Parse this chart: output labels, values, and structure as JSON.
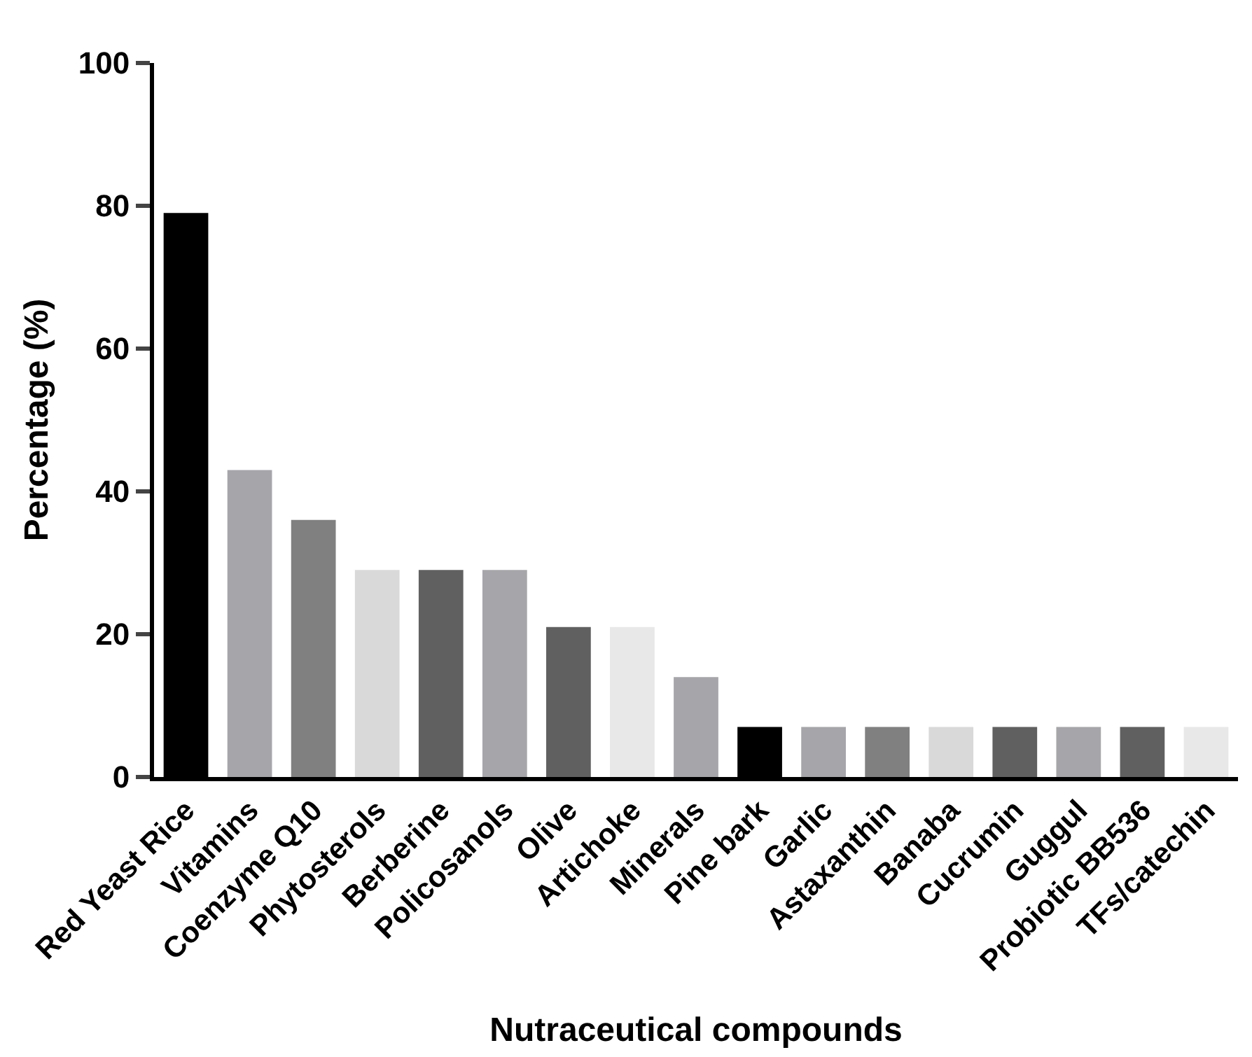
{
  "chart_data": {
    "type": "bar",
    "xlabel": "Nutraceutical compounds",
    "ylabel": "Percentage (%)",
    "categories": [
      "Red Yeast Rice",
      "Vitamins",
      "Coenzyme Q10",
      "Phytosterols",
      "Berberine",
      "Policosanols",
      "Olive",
      "Artichoke",
      "Minerals",
      "Pine bark",
      "Garlic",
      "Astaxanthin",
      "Banaba",
      "Cucrumin",
      "Guggul",
      "Probiotic BB536",
      "TFs/catechin"
    ],
    "values": [
      79,
      43,
      36,
      29,
      29,
      29,
      21,
      21,
      14,
      7,
      7,
      7,
      7,
      7,
      7,
      7,
      7
    ],
    "colors": [
      "#000000",
      "#a6a6aa",
      "#808080",
      "#d9d9d9",
      "#606060",
      "#a6a6aa",
      "#606060",
      "#e8e8e8",
      "#a6a6aa",
      "#000000",
      "#a6a6aa",
      "#808080",
      "#d9d9d9",
      "#606060",
      "#a6a6aa",
      "#606060",
      "#e8e8e8"
    ],
    "ylim": [
      0,
      100
    ],
    "yticks": [
      0,
      20,
      40,
      60,
      80,
      100
    ]
  }
}
